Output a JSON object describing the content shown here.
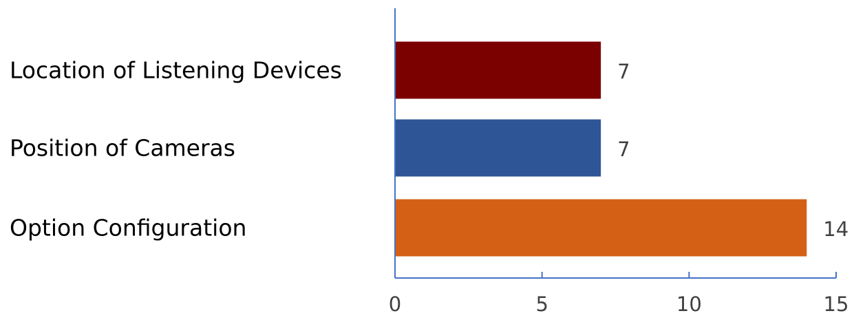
{
  "chart_data": {
    "type": "bar",
    "orientation": "horizontal",
    "title": "",
    "xlabel": "",
    "ylabel": "",
    "categories": [
      "Location of Listening Devices",
      "Position of Cameras",
      "Option Configuration"
    ],
    "values": [
      7,
      7,
      14
    ],
    "data_labels": [
      "7",
      "7",
      "14"
    ],
    "xlim": [
      0,
      15
    ],
    "x_ticks": [
      0,
      5,
      10,
      15
    ],
    "x_tick_labels": [
      "0",
      "5",
      "10",
      "15"
    ],
    "grid": false,
    "legend": "none",
    "colors": [
      "#7b0000",
      "#2e5596",
      "#d46015"
    ],
    "axis_color": "#4472c4"
  }
}
